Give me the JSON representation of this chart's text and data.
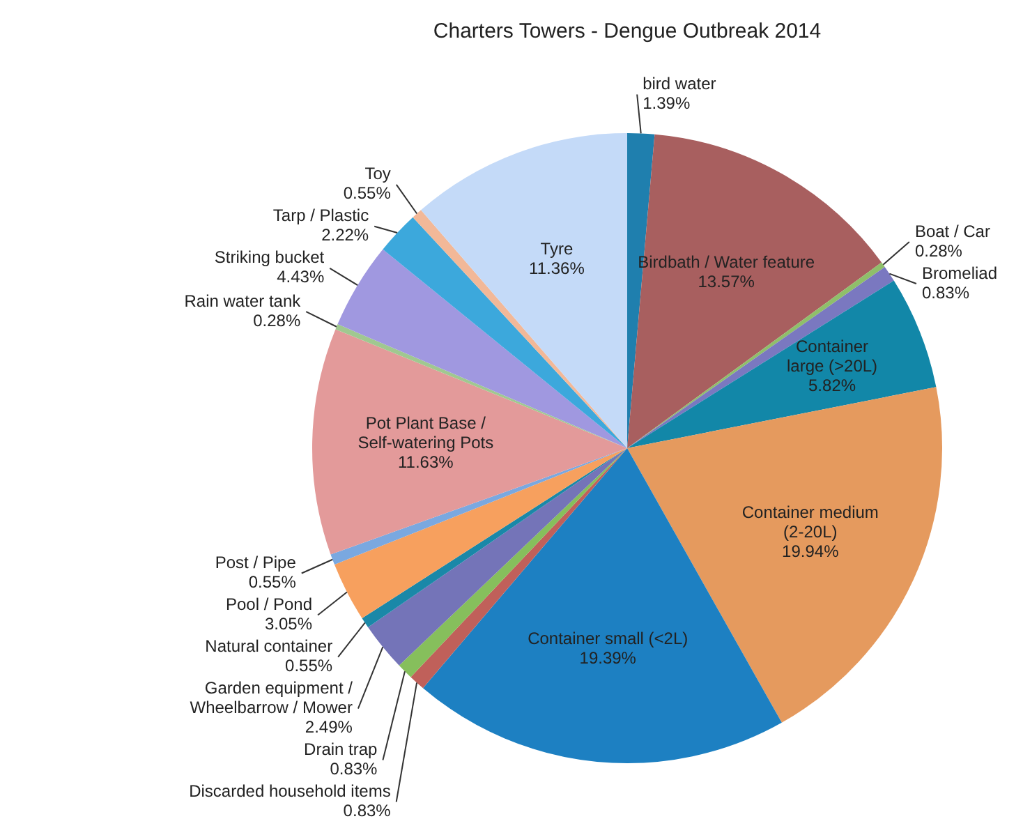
{
  "chart_data": {
    "type": "pie",
    "title": "Charters Towers - Dengue Outbreak 2014",
    "categories": [
      "bird water",
      "Birdbath / Water feature",
      "Boat / Car",
      "Bromeliad",
      "Container large (>20L)",
      "Container medium (2-20L)",
      "Container small (<2L)",
      "Discarded household items",
      "Drain trap",
      "Garden equipment / Wheelbarrow / Mower",
      "Natural container",
      "Pool / Pond",
      "Post / Pipe",
      "Pot Plant Base / Self-watering Pots",
      "Rain water tank",
      "Striking bucket",
      "Tarp / Plastic",
      "Toy",
      "Tyre"
    ],
    "values": [
      1.39,
      13.57,
      0.28,
      0.83,
      5.82,
      19.94,
      19.39,
      0.83,
      0.83,
      2.49,
      0.55,
      3.05,
      0.55,
      11.63,
      0.28,
      4.43,
      2.22,
      0.55,
      11.36
    ],
    "value_labels": [
      "1.39%",
      "13.57%",
      "0.28%",
      "0.83%",
      "5.82%",
      "19.94%",
      "19.39%",
      "0.83%",
      "0.83%",
      "2.49%",
      "0.55%",
      "3.05%",
      "0.55%",
      "11.63%",
      "0.28%",
      "4.43%",
      "2.22%",
      "0.55%",
      "11.36%"
    ],
    "colors": [
      "#1f7fae",
      "#a85f5f",
      "#8fbf6a",
      "#7a78c0",
      "#1287a8",
      "#e59a5e",
      "#1d80c2",
      "#c0605a",
      "#86bf5c",
      "#7474b8",
      "#1a88a8",
      "#f7a05e",
      "#7aa8e0",
      "#e39a9a",
      "#a0c890",
      "#a098e0",
      "#3ca8dc",
      "#f2b898",
      "#c4daf8"
    ],
    "legend": false
  }
}
